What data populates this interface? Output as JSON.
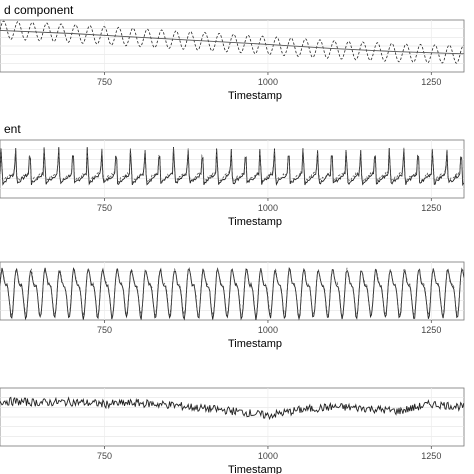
{
  "chart_data": [
    {
      "type": "line",
      "title": "d component",
      "xlabel": "Timestamp",
      "ylabel": "",
      "x_ticks": [
        750,
        1000,
        1250
      ],
      "xlim": [
        590,
        1300
      ],
      "ylim": [
        -1,
        1
      ],
      "grid": true,
      "series": [
        {
          "style": "dashed",
          "x": [
            590,
            650,
            700,
            750,
            800,
            850,
            900,
            950,
            1000,
            1050,
            1100,
            1150,
            1200,
            1250,
            1300
          ],
          "y": [
            0.62,
            0.55,
            0.48,
            0.4,
            0.33,
            0.25,
            0.18,
            0.1,
            0.02,
            -0.06,
            -0.14,
            -0.2,
            -0.26,
            -0.3,
            -0.32
          ],
          "cycle_period": 22,
          "cycle_amplitude": 0.35
        },
        {
          "style": "solid",
          "x": [
            590,
            700,
            800,
            900,
            1000,
            1100,
            1200,
            1300
          ],
          "y": [
            0.6,
            0.48,
            0.34,
            0.2,
            0.06,
            -0.1,
            -0.22,
            -0.3
          ]
        }
      ]
    },
    {
      "type": "line",
      "title": "ent",
      "xlabel": "Timestamp",
      "ylabel": "",
      "x_ticks": [
        750,
        1000,
        1250
      ],
      "xlim": [
        590,
        1300
      ],
      "ylim": [
        -1,
        1
      ],
      "grid": true,
      "series": [
        {
          "style": "solid",
          "pattern": "sharp-peak seasonal",
          "cycle_period": 22,
          "x_start": 590,
          "x_end": 1300,
          "amplitude": 0.85
        },
        {
          "style": "dashed",
          "pattern": "sharp-peak seasonal",
          "cycle_period": 22,
          "x_start": 590,
          "x_end": 1300,
          "amplitude": 0.8
        }
      ]
    },
    {
      "type": "line",
      "title": "",
      "xlabel": "Timestamp",
      "ylabel": "",
      "x_ticks": [
        750,
        1000,
        1250
      ],
      "xlim": [
        590,
        1300
      ],
      "ylim": [
        -1,
        1
      ],
      "grid": true,
      "series": [
        {
          "style": "solid",
          "pattern": "double-peak seasonal",
          "cycle_period": 22,
          "x_start": 590,
          "x_end": 1300,
          "amplitude": 0.9
        },
        {
          "style": "dashed",
          "pattern": "double-peak seasonal",
          "cycle_period": 22,
          "x_start": 590,
          "x_end": 1300,
          "amplitude": 0.85
        }
      ]
    },
    {
      "type": "line",
      "title": "",
      "xlabel": "Timestamp",
      "ylabel": "",
      "x_ticks": [
        750,
        1000,
        1250
      ],
      "xlim": [
        590,
        1300
      ],
      "ylim": [
        -1,
        1
      ],
      "grid": true,
      "series": [
        {
          "style": "solid",
          "pattern": "residual noise",
          "x": [
            590,
            650,
            700,
            750,
            800,
            850,
            900,
            950,
            1000,
            1050,
            1100,
            1150,
            1200,
            1250,
            1300
          ],
          "y": [
            0.55,
            0.5,
            0.52,
            0.45,
            0.48,
            0.42,
            0.3,
            0.2,
            0.05,
            0.25,
            0.35,
            0.3,
            0.2,
            0.45,
            0.35
          ]
        }
      ]
    }
  ]
}
